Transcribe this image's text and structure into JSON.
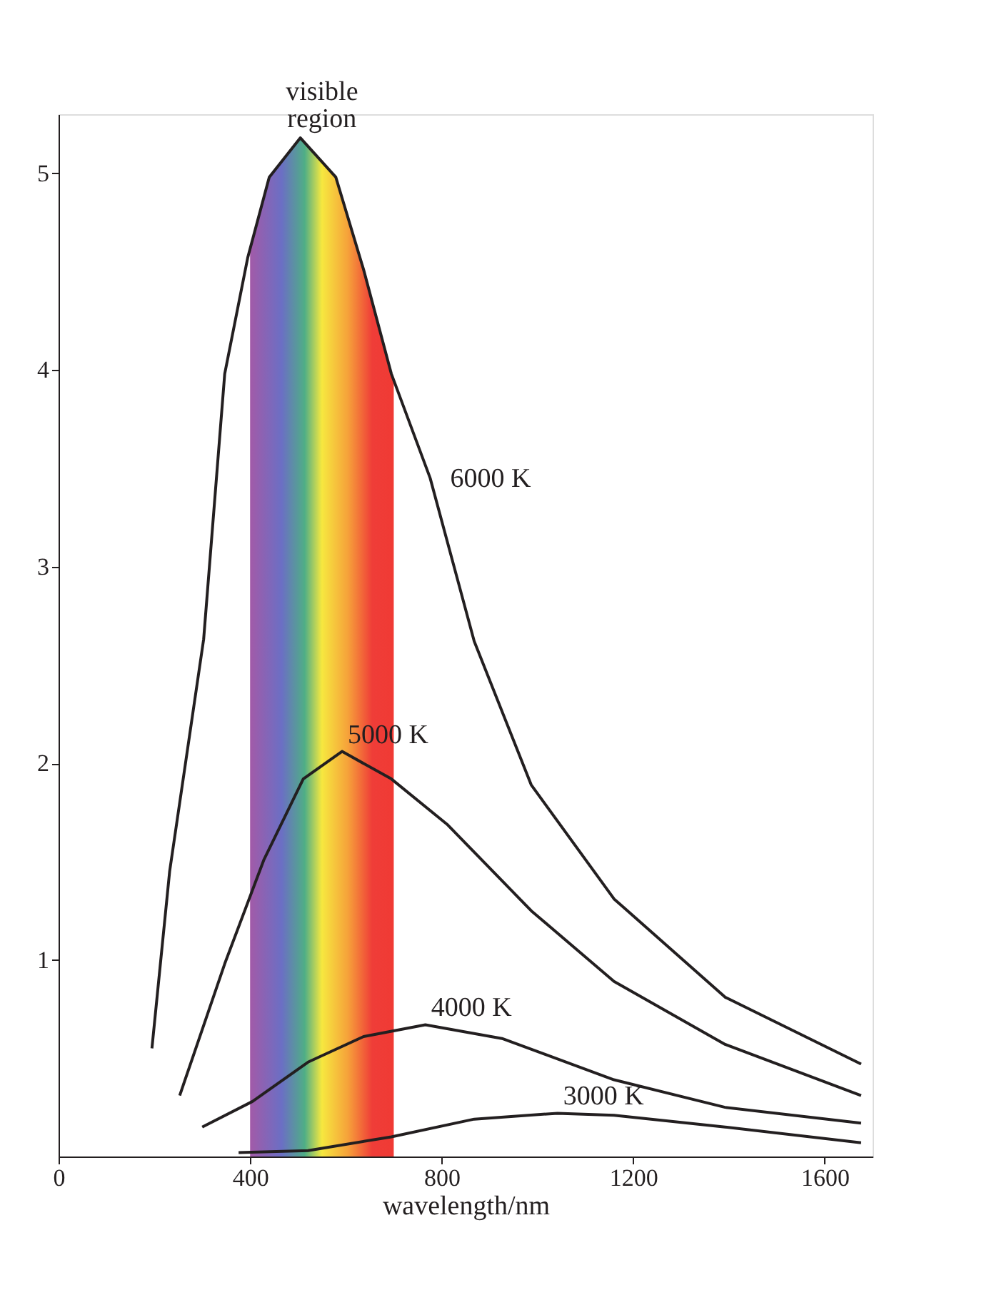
{
  "chart_data": {
    "type": "line",
    "xlabel": "wavelength/nm",
    "xlim": [
      0,
      1700
    ],
    "ylim": [
      0,
      5.3
    ],
    "xticks": [
      0,
      400,
      800,
      1200,
      1600
    ],
    "yticks": [
      1,
      2,
      3,
      4,
      5
    ],
    "marker": "none",
    "line_style": "solid",
    "bands": [
      {
        "axis": "x",
        "from": 400,
        "to": 700,
        "label": "visible region"
      }
    ],
    "series": [
      {
        "name": "6000 K",
        "color": "#231f20",
        "x": [
          195,
          232,
          303,
          347,
          395,
          440,
          505,
          579,
          637,
          695,
          776,
          868,
          987,
          1160,
          1392,
          1676
        ],
        "values": [
          0.55,
          1.45,
          2.63,
          3.98,
          4.57,
          4.98,
          5.18,
          4.98,
          4.51,
          3.98,
          3.45,
          2.62,
          1.89,
          1.31,
          0.81,
          0.47
        ]
      },
      {
        "name": "5000 K",
        "color": "#231f20",
        "x": [
          253,
          347,
          429,
          511,
          592,
          695,
          811,
          987,
          1160,
          1392,
          1676
        ],
        "values": [
          0.31,
          0.98,
          1.51,
          1.92,
          2.06,
          1.92,
          1.69,
          1.25,
          0.89,
          0.57,
          0.31
        ]
      },
      {
        "name": "4000 K",
        "color": "#231f20",
        "x": [
          300,
          405,
          521,
          637,
          766,
          926,
          1160,
          1392,
          1676
        ],
        "values": [
          0.15,
          0.28,
          0.48,
          0.61,
          0.67,
          0.6,
          0.39,
          0.25,
          0.17
        ]
      },
      {
        "name": "3000 K",
        "color": "#231f20",
        "x": [
          376,
          521,
          695,
          868,
          1042,
          1160,
          1392,
          1676
        ],
        "values": [
          0.02,
          0.03,
          0.1,
          0.19,
          0.22,
          0.21,
          0.15,
          0.07
        ]
      }
    ]
  }
}
